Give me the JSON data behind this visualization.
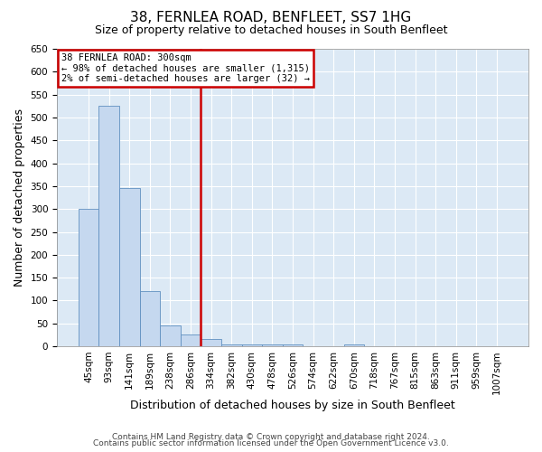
{
  "title": "38, FERNLEA ROAD, BENFLEET, SS7 1HG",
  "subtitle": "Size of property relative to detached houses in South Benfleet",
  "xlabel": "Distribution of detached houses by size in South Benfleet",
  "ylabel": "Number of detached properties",
  "footnote1": "Contains HM Land Registry data © Crown copyright and database right 2024.",
  "footnote2": "Contains public sector information licensed under the Open Government Licence v3.0.",
  "bin_labels": [
    "45sqm",
    "93sqm",
    "141sqm",
    "189sqm",
    "238sqm",
    "286sqm",
    "334sqm",
    "382sqm",
    "430sqm",
    "478sqm",
    "526sqm",
    "574sqm",
    "622sqm",
    "670sqm",
    "718sqm",
    "767sqm",
    "815sqm",
    "863sqm",
    "911sqm",
    "959sqm",
    "1007sqm"
  ],
  "bar_values": [
    300,
    525,
    345,
    120,
    45,
    25,
    15,
    5,
    5,
    5,
    5,
    0,
    0,
    5,
    0,
    0,
    0,
    0,
    0,
    0,
    0
  ],
  "bar_color": "#c5d8ef",
  "bar_edge_color": "#6090c0",
  "red_line_x": 5.5,
  "annotation_title": "38 FERNLEA ROAD: 300sqm",
  "annotation_line1": "← 98% of detached houses are smaller (1,315)",
  "annotation_line2": "2% of semi-detached houses are larger (32) →",
  "annotation_box_color": "#cc0000",
  "ylim": [
    0,
    650
  ],
  "yticks": [
    0,
    50,
    100,
    150,
    200,
    250,
    300,
    350,
    400,
    450,
    500,
    550,
    600,
    650
  ],
  "plot_bg_color": "#dce9f5",
  "fig_bg_color": "#ffffff",
  "grid_color": "#ffffff",
  "title_fontsize": 11,
  "subtitle_fontsize": 9,
  "axis_label_fontsize": 9,
  "ylabel_fontsize": 9,
  "tick_fontsize": 7.5,
  "footnote_fontsize": 6.5
}
